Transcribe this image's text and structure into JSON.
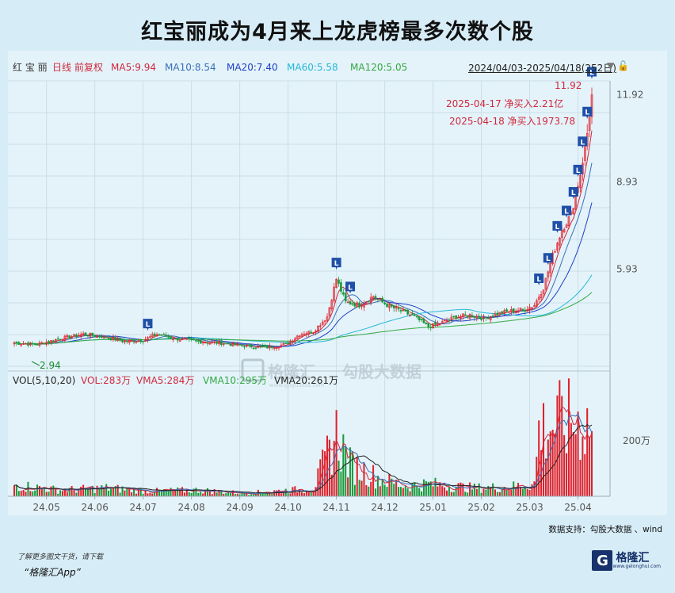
{
  "title": "红宝丽成为4月来上龙虎榜最多次数个股",
  "legend": {
    "stock": "红 宝 丽",
    "period": "日线",
    "adjust": "前复权",
    "ma5": "MA5:9.94",
    "ma10": "MA10:8.54",
    "ma20": "MA20:7.40",
    "ma60": "MA60:5.58",
    "ma120": "MA120:5.05",
    "range": "2024/04/03-2025/04/18(252日)"
  },
  "volume_legend": {
    "label": "VOL(5,10,20)",
    "vol": "VOL:283万",
    "vma5": "VMA5:284万",
    "vma10": "VMA10:295万",
    "vma20": "VMA20:261万",
    "ytick": "200万"
  },
  "annotations": {
    "max_label": "11.92",
    "min_label": "2.94",
    "note1": "2025-04-17 净买入2.21亿",
    "note2": "2025-04-18 净买入1973.78",
    "marker": "L"
  },
  "watermark": {
    "brand": "格隆汇",
    "sub": "勾股大数据",
    "url": "www.gogudata.com"
  },
  "colors": {
    "up": "#e0202a",
    "down": "#1a9a3a",
    "ma5": "#d0283c",
    "ma10": "#3a6fb7",
    "ma20": "#1f3fc8",
    "ma60": "#25b8d6",
    "ma120": "#33a842",
    "marker": "#1f4fa8"
  },
  "chart_data": {
    "type": "candlestick",
    "y_ticks": [
      11.92,
      8.93,
      5.93
    ],
    "ylim": [
      2.6,
      12.4
    ],
    "x_ticks": [
      "24.05",
      "24.06",
      "24.07",
      "24.08",
      "24.09",
      "24.10",
      "24.11",
      "24.12",
      "25.01",
      "25.02",
      "25.03",
      "25.04"
    ],
    "close_trend": [
      [
        0,
        3.4
      ],
      [
        10,
        3.35
      ],
      [
        20,
        3.55
      ],
      [
        30,
        3.7
      ],
      [
        40,
        3.6
      ],
      [
        48,
        3.45
      ],
      [
        56,
        3.5
      ],
      [
        62,
        3.7
      ],
      [
        70,
        3.55
      ],
      [
        80,
        3.45
      ],
      [
        90,
        3.4
      ],
      [
        100,
        3.3
      ],
      [
        110,
        3.25
      ],
      [
        118,
        3.35
      ],
      [
        124,
        3.7
      ],
      [
        130,
        3.8
      ],
      [
        136,
        4.3
      ],
      [
        140,
        5.6
      ],
      [
        144,
        4.8
      ],
      [
        150,
        4.7
      ],
      [
        156,
        5.0
      ],
      [
        162,
        4.7
      ],
      [
        168,
        4.5
      ],
      [
        174,
        4.3
      ],
      [
        180,
        3.95
      ],
      [
        186,
        4.1
      ],
      [
        192,
        4.3
      ],
      [
        198,
        4.35
      ],
      [
        204,
        4.25
      ],
      [
        210,
        4.4
      ],
      [
        216,
        4.5
      ],
      [
        222,
        4.55
      ],
      [
        226,
        4.7
      ],
      [
        230,
        5.3
      ],
      [
        234,
        6.4
      ],
      [
        238,
        7.3
      ],
      [
        242,
        7.8
      ],
      [
        246,
        9.2
      ],
      [
        249,
        10.6
      ],
      [
        251,
        11.92
      ]
    ],
    "volume_trend": [
      [
        0,
        0.55
      ],
      [
        20,
        0.3
      ],
      [
        40,
        0.4
      ],
      [
        60,
        0.25
      ],
      [
        80,
        0.3
      ],
      [
        100,
        0.15
      ],
      [
        120,
        0.3
      ],
      [
        130,
        0.35
      ],
      [
        140,
        3.0
      ],
      [
        146,
        1.5
      ],
      [
        160,
        0.8
      ],
      [
        170,
        0.5
      ],
      [
        180,
        0.6
      ],
      [
        200,
        0.4
      ],
      [
        215,
        0.45
      ],
      [
        226,
        0.6
      ],
      [
        228,
        3.2
      ],
      [
        236,
        3.5
      ],
      [
        244,
        3.6
      ],
      [
        250,
        3.5
      ],
      [
        251,
        2.83
      ]
    ],
    "lhb_days": [
      58,
      140,
      146,
      228,
      232,
      236,
      240,
      243,
      245,
      247,
      249,
      251
    ]
  }
}
